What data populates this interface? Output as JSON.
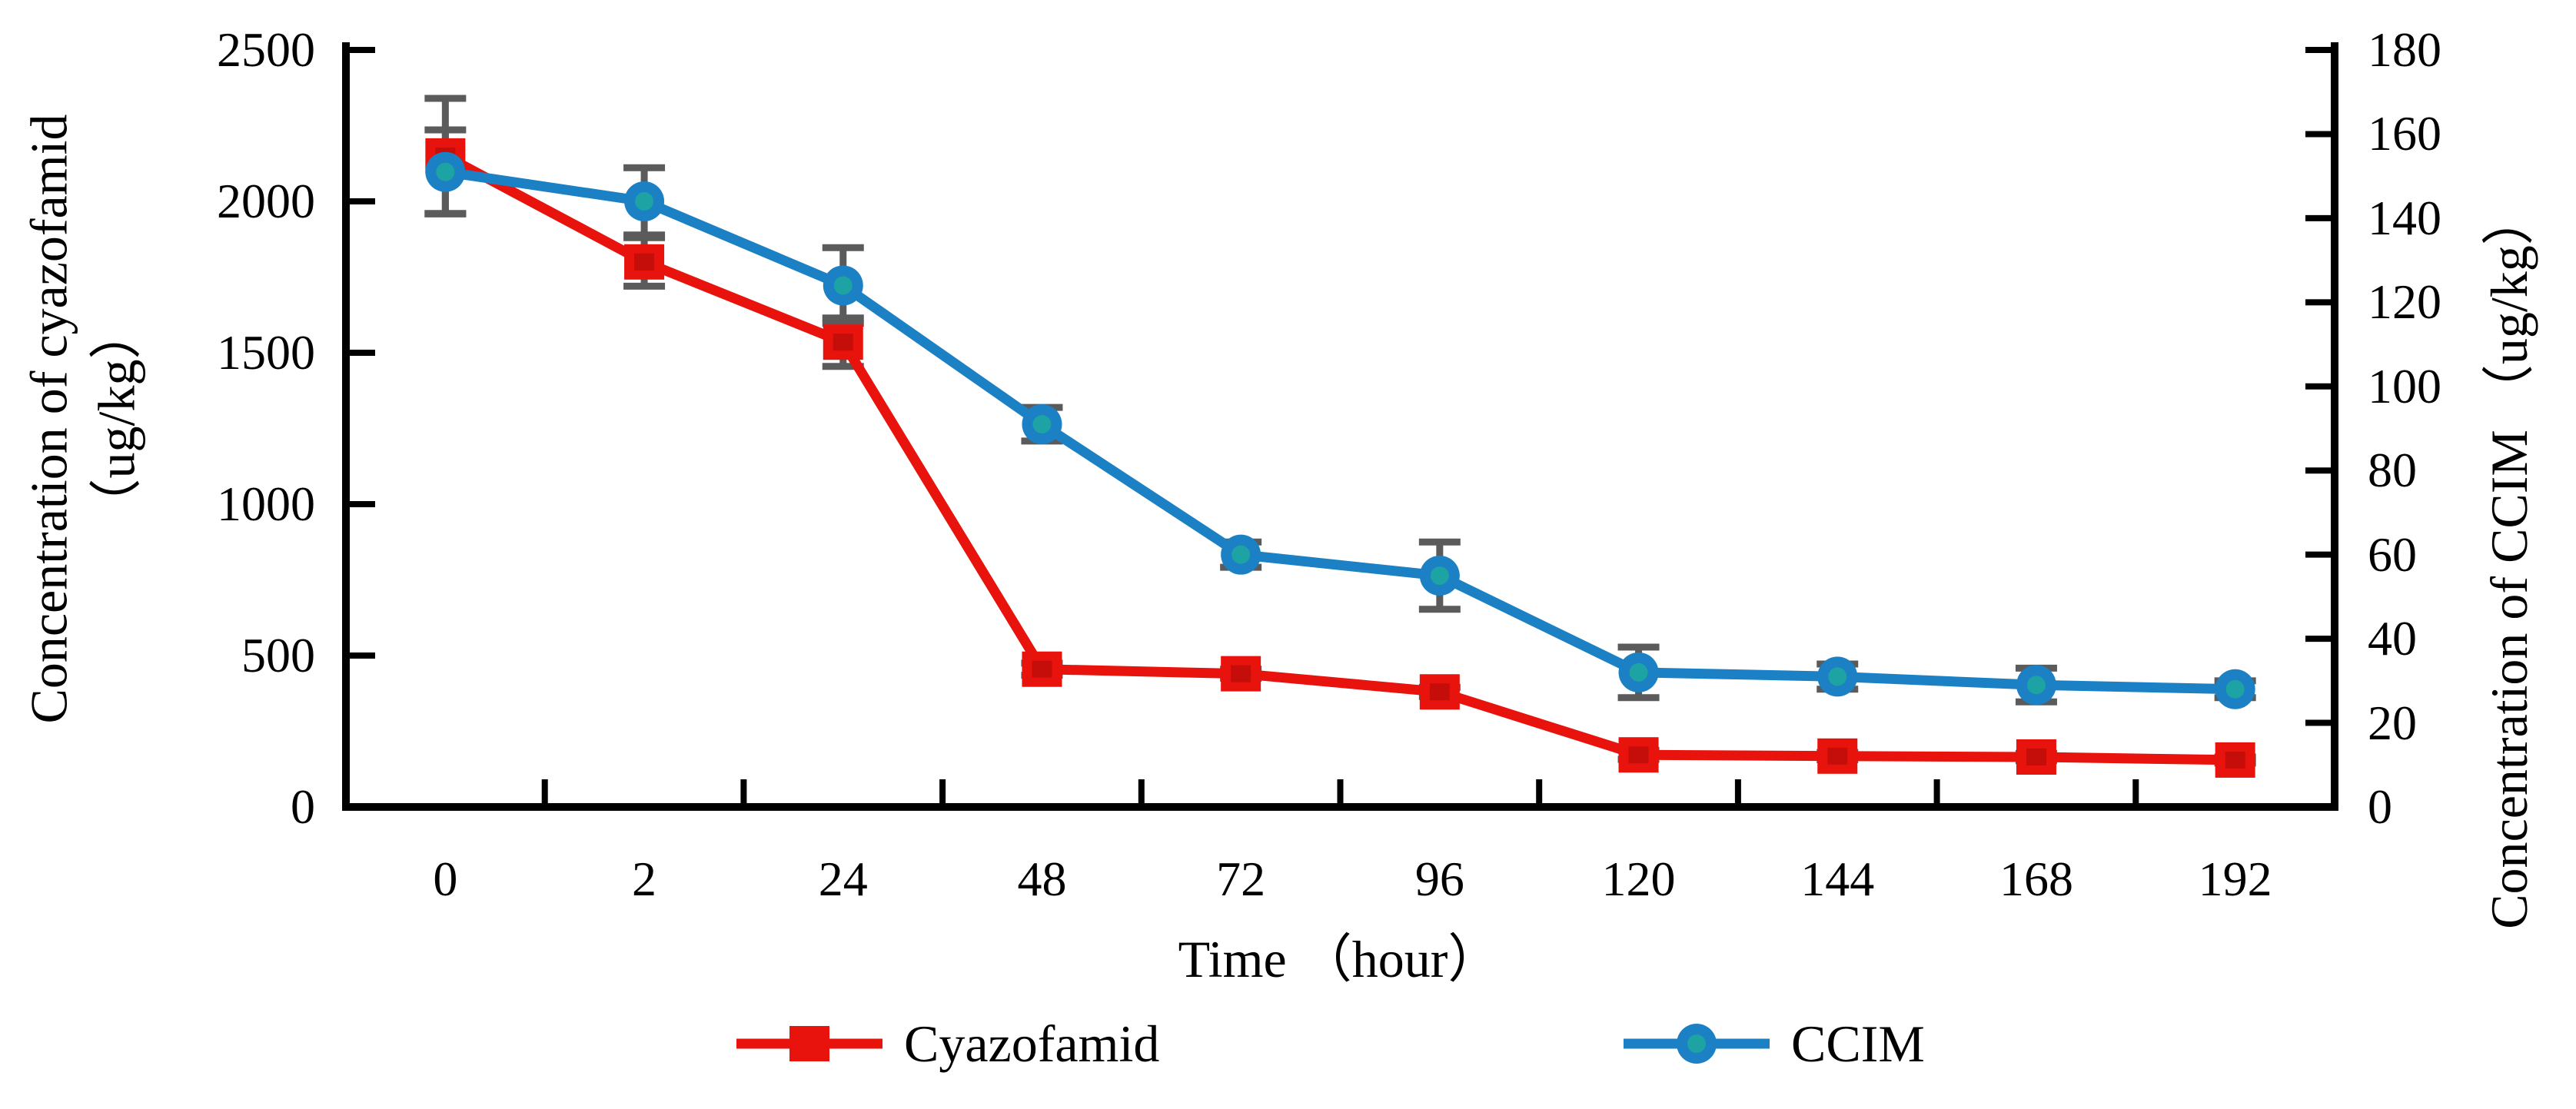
{
  "chart_data": {
    "type": "line",
    "title": "",
    "xlabel": "Time （hour）",
    "x_categories": [
      0,
      2,
      24,
      48,
      72,
      96,
      120,
      144,
      168,
      192
    ],
    "x_tick_labels": [
      "0",
      "2",
      "24",
      "48",
      "72",
      "96",
      "120",
      "144",
      "168",
      "192"
    ],
    "left_axis": {
      "label_line1": "Concentration of cyazofamid",
      "label_line2": "（ug/kg）",
      "min": 0,
      "max": 2500,
      "ticks": [
        0,
        500,
        1000,
        1500,
        2000,
        2500
      ]
    },
    "right_axis": {
      "label": "Concentration of CCIM （ug/kg）",
      "min": 0,
      "max": 180,
      "ticks": [
        0,
        20,
        40,
        60,
        80,
        100,
        120,
        140,
        160,
        180
      ]
    },
    "series": [
      {
        "name": "Cyazofamid",
        "axis": "left",
        "marker": "square",
        "color": "#e8130d",
        "marker_inner_color": "#c50d0a",
        "values": [
          2150,
          1800,
          1535,
          455,
          440,
          380,
          172,
          168,
          165,
          155
        ],
        "errors": [
          190,
          80,
          80,
          20,
          15,
          15,
          15,
          12,
          12,
          10
        ]
      },
      {
        "name": "CCIM",
        "axis": "right",
        "marker": "circle",
        "color": "#1b80c4",
        "marker_inner_color": "#1da3a4",
        "values": [
          151,
          144,
          124,
          91,
          60,
          55,
          32,
          31,
          29,
          28
        ],
        "errors": [
          10,
          8,
          9,
          4,
          3,
          8,
          6,
          3,
          4,
          2
        ]
      }
    ],
    "error_bar_color": "#5b5b5b",
    "axis_color": "#000000",
    "grid": false,
    "legend_position": "bottom"
  },
  "legend": {
    "items": [
      {
        "label": "Cyazofamid"
      },
      {
        "label": "CCIM"
      }
    ]
  }
}
